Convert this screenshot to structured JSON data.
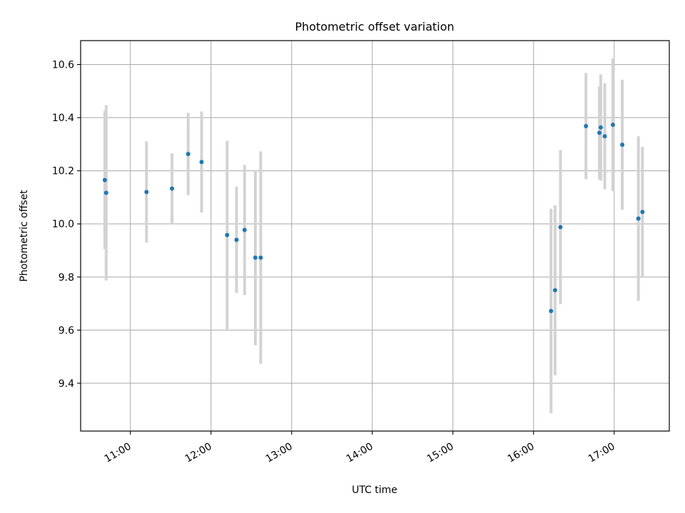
{
  "chart_data": {
    "type": "scatter",
    "title": "Photometric offset variation",
    "xlabel": "UTC time",
    "ylabel": "Photometric offset",
    "x_ticks": [
      "11:00",
      "12:00",
      "13:00",
      "14:00",
      "15:00",
      "16:00",
      "17:00"
    ],
    "y_ticks": [
      "9.4",
      "9.6",
      "9.8",
      "10.0",
      "10.2",
      "10.4",
      "10.6"
    ],
    "xlim": [
      "10:23",
      "17:41"
    ],
    "ylim": [
      9.22,
      10.69
    ],
    "grid": true,
    "series": [
      {
        "marker_color": "#1f77b4",
        "errorbar_color": "#d3d3d3",
        "points": [
          {
            "time": "10:41",
            "y": 10.165,
            "err": 0.26
          },
          {
            "time": "10:42",
            "y": 10.117,
            "err": 0.33
          },
          {
            "time": "11:12",
            "y": 10.12,
            "err": 0.19
          },
          {
            "time": "11:31",
            "y": 10.133,
            "err": 0.133
          },
          {
            "time": "11:43",
            "y": 10.263,
            "err": 0.155
          },
          {
            "time": "11:53",
            "y": 10.233,
            "err": 0.19
          },
          {
            "time": "12:12",
            "y": 9.958,
            "err": 0.355
          },
          {
            "time": "12:19",
            "y": 9.94,
            "err": 0.2
          },
          {
            "time": "12:25",
            "y": 9.977,
            "err": 0.245
          },
          {
            "time": "12:33",
            "y": 9.873,
            "err": 0.33
          },
          {
            "time": "12:37",
            "y": 9.873,
            "err": 0.4
          },
          {
            "time": "16:13",
            "y": 9.672,
            "err": 0.385
          },
          {
            "time": "16:16",
            "y": 9.75,
            "err": 0.32
          },
          {
            "time": "16:20",
            "y": 9.988,
            "err": 0.29
          },
          {
            "time": "16:39",
            "y": 10.368,
            "err": 0.2
          },
          {
            "time": "16:49",
            "y": 10.343,
            "err": 0.175
          },
          {
            "time": "16:50",
            "y": 10.363,
            "err": 0.2
          },
          {
            "time": "16:53",
            "y": 10.33,
            "err": 0.2
          },
          {
            "time": "16:59",
            "y": 10.373,
            "err": 0.25
          },
          {
            "time": "17:06",
            "y": 10.298,
            "err": 0.245
          },
          {
            "time": "17:18",
            "y": 10.02,
            "err": 0.31
          },
          {
            "time": "17:21",
            "y": 10.045,
            "err": 0.245
          }
        ]
      }
    ]
  }
}
